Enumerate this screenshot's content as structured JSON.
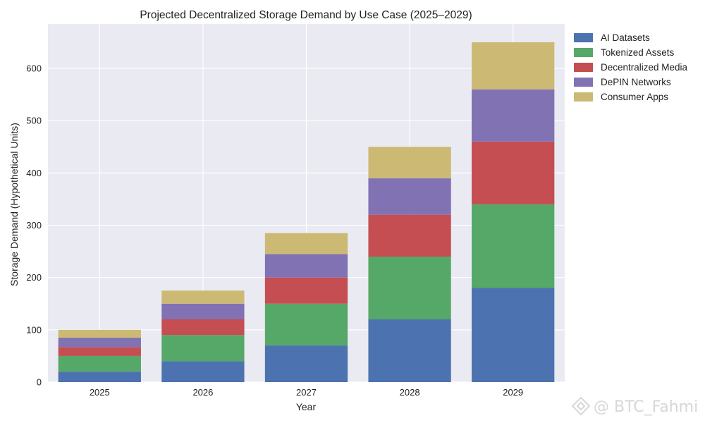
{
  "chart_data": {
    "type": "bar",
    "stacked": true,
    "title": "Projected Decentralized Storage Demand by Use Case (2025–2029)",
    "xlabel": "Year",
    "ylabel": "Storage Demand (Hypothetical Units)",
    "categories": [
      "2025",
      "2026",
      "2027",
      "2028",
      "2029"
    ],
    "ylim": [
      0,
      685
    ],
    "yticks": [
      0,
      100,
      200,
      300,
      400,
      500,
      600
    ],
    "grid": true,
    "legend_position": "top-right-outside",
    "series": [
      {
        "name": "AI Datasets",
        "color": "#4c72b0",
        "values": [
          20,
          40,
          70,
          120,
          180
        ]
      },
      {
        "name": "Tokenized Assets",
        "color": "#55a868",
        "values": [
          30,
          50,
          80,
          120,
          160
        ]
      },
      {
        "name": "Decentralized Media",
        "color": "#c44e52",
        "values": [
          17,
          30,
          50,
          80,
          120
        ]
      },
      {
        "name": "DePIN Networks",
        "color": "#8172b3",
        "values": [
          18,
          30,
          45,
          70,
          100
        ]
      },
      {
        "name": "Consumer Apps",
        "color": "#ccb974",
        "values": [
          15,
          25,
          40,
          60,
          90
        ]
      }
    ]
  },
  "watermark": {
    "text": "@ BTC_Fahmi",
    "icon": "binance-logo-icon"
  },
  "colors": {
    "plot_background": "#eaeaf2",
    "grid": "#ffffff"
  }
}
